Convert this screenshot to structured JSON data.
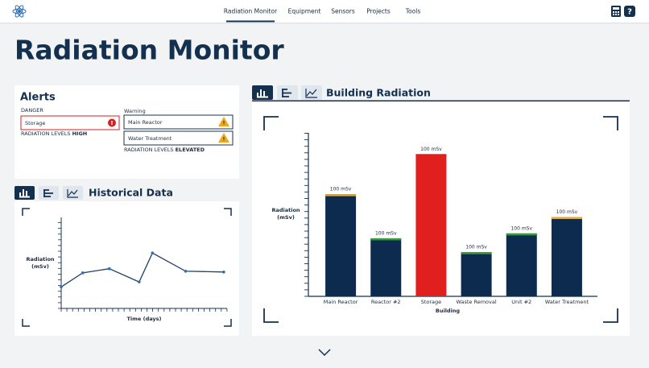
{
  "nav": {
    "links": [
      "Radiation Monitor",
      "Equipment",
      "Sensors",
      "Projects",
      "Tools"
    ]
  },
  "page_title": "Radiation Monitor",
  "alerts": {
    "title": "Alerts",
    "danger": {
      "heading": "DANGER",
      "items": [
        "Storage"
      ],
      "status_prefix": "RADIATION LEVELS",
      "status_level": "HIGH"
    },
    "warning": {
      "heading": "Warning",
      "items": [
        "Main Reactor",
        "Water Treatment"
      ],
      "status_prefix": "RADIATION LEVELS",
      "status_level": "ELEVATED"
    }
  },
  "historical": {
    "title": "Historical Data",
    "chart_data": {
      "type": "line",
      "x_label": "Time (days)",
      "y_label": [
        "Radiation",
        "(mSv)"
      ],
      "x": [
        0,
        2.6,
        5.8,
        9.4,
        11,
        15,
        19.6
      ],
      "values": [
        26,
        43,
        48,
        32,
        67,
        45,
        44
      ],
      "xlim": [
        0,
        20
      ],
      "ylim": [
        0,
        110
      ],
      "color": "#1f3f66",
      "marker_color": "#2f6fb0"
    }
  },
  "building": {
    "title": "Building Radiation",
    "chart_data": {
      "type": "bar",
      "x_label": "Building",
      "y_label": [
        "Radiation",
        "(mSv)"
      ],
      "categories": [
        "Main Reactor",
        "Reactor #2",
        "Storage",
        "Waste Removal",
        "Unit #2",
        "Water Treatment"
      ],
      "values": [
        125,
        71,
        174,
        54,
        77,
        97
      ],
      "bar_annotations": [
        "100 mSv",
        "100 mSv",
        "100 mSv",
        "100 mSv",
        "100 mSv",
        "100 mSv"
      ],
      "colors": [
        "#0d2b4e",
        "#0d2b4e",
        "#e11f1f",
        "#0d2b4e",
        "#0d2b4e",
        "#0d2b4e"
      ],
      "cap_colors": [
        "#f2a71b",
        "#3a9a3a",
        "#e11f1f",
        "#3a9a3a",
        "#3a9a3a",
        "#f2a71b"
      ],
      "ylim": [
        0,
        200
      ]
    }
  }
}
